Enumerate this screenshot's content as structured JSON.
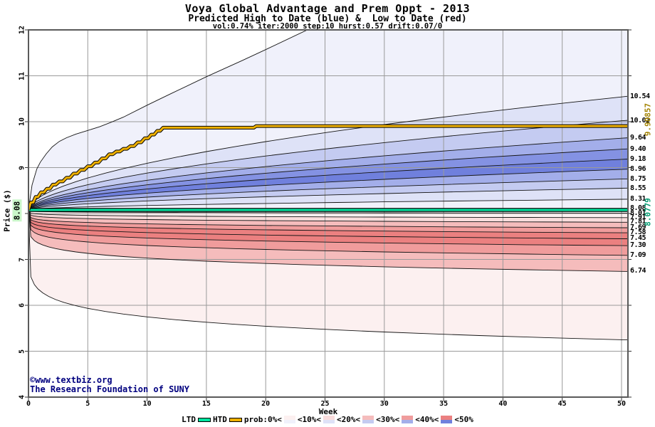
{
  "header": {
    "title": "Voya Global Advantage and Prem Oppt - 2013",
    "subtitle": "Predicted High to Date (blue) &  Low to Date (red)",
    "params": "vol:0.74% iter:2000 step:10 hurst:0.57 drift:0.07/0"
  },
  "watermark": {
    "line1": "©www.textbiz.org",
    "line2": "The Research Foundation of SUNY",
    "color": "#00007f"
  },
  "axes": {
    "x_label": "Week",
    "y_label": "Price ($)",
    "x_ticks": [
      0,
      5,
      10,
      15,
      20,
      25,
      30,
      35,
      40,
      45,
      50
    ],
    "y_ticks": [
      4,
      5,
      6,
      7,
      8,
      9,
      10,
      11,
      12
    ],
    "x_range": [
      0,
      50
    ],
    "y_range": [
      4,
      12
    ],
    "start_price_label": "8.08"
  },
  "right_axis": {
    "blue_labels": [
      {
        "text": "10.54",
        "v": 10.54
      },
      {
        "text": "10.02",
        "v": 10.02
      },
      {
        "text": "9.64",
        "v": 9.64
      },
      {
        "text": "9.40",
        "v": 9.4
      },
      {
        "text": "9.18",
        "v": 9.18
      },
      {
        "text": "8.96",
        "v": 8.96
      },
      {
        "text": "8.75",
        "v": 8.75
      },
      {
        "text": "8.55",
        "v": 8.55
      },
      {
        "text": "8.31",
        "v": 8.31
      },
      {
        "text": "8.08",
        "v": 8.115
      }
    ],
    "red_labels": [
      {
        "text": "8.01",
        "v": 8.005
      },
      {
        "text": "7.91",
        "v": 7.905
      },
      {
        "text": "7.81",
        "v": 7.81
      },
      {
        "text": "7.69",
        "v": 7.69
      },
      {
        "text": "7.58",
        "v": 7.58
      },
      {
        "text": "7.45",
        "v": 7.45
      },
      {
        "text": "7.30",
        "v": 7.3
      },
      {
        "text": "7.09",
        "v": 7.09
      },
      {
        "text": "6.74",
        "v": 6.74
      }
    ],
    "htd_value_label": {
      "text": "9.90857",
      "color": "#a28200"
    },
    "ltd_value_label": {
      "text": "8.0779",
      "color": "#009a70"
    }
  },
  "legend": {
    "ltd_label": "LTD",
    "htd_label": "HTD",
    "ltd_color": "#00e5a0",
    "htd_color": "#eeb000",
    "prob_labels": [
      "prob:0%<",
      "<10%<",
      "<20%<",
      "<30%<",
      "<40%<",
      "<50%"
    ],
    "prob_swatches": [
      {
        "top": "#fcf0f0",
        "bottom": "#f0f1fb"
      },
      {
        "top": "#f9dcdc",
        "bottom": "#dee2f7"
      },
      {
        "top": "#f5bcbc",
        "bottom": "#c4cbf1"
      },
      {
        "top": "#f09c9c",
        "bottom": "#a3aeea"
      },
      {
        "top": "#eb8080",
        "bottom": "#7080dd"
      }
    ]
  },
  "chart_data": {
    "type": "area",
    "subtype": "probability-fan",
    "title": "Voya Global Advantage and Prem Oppt - 2013",
    "xlabel": "Week",
    "ylabel": "Price ($)",
    "x_range": [
      0,
      50
    ],
    "y_range": [
      4,
      12
    ],
    "grid": true,
    "start_price": 8.08,
    "grid_color": "#9a9a9a",
    "border_color": "#5a5a5a",
    "boundary_color": "#141414",
    "htd_line": {
      "name": "High to Date",
      "value": 9.90857,
      "color": "#eeb000",
      "points": [
        [
          0,
          8.08
        ],
        [
          0.4,
          8.24
        ],
        [
          0.8,
          8.36
        ],
        [
          1.3,
          8.46
        ],
        [
          1.8,
          8.54
        ],
        [
          2.3,
          8.63
        ],
        [
          2.9,
          8.7
        ],
        [
          3.5,
          8.78
        ],
        [
          4.1,
          8.87
        ],
        [
          4.7,
          8.95
        ],
        [
          5.3,
          9.03
        ],
        [
          5.9,
          9.11
        ],
        [
          6.5,
          9.2
        ],
        [
          7.1,
          9.29
        ],
        [
          7.7,
          9.35
        ],
        [
          8.3,
          9.41
        ],
        [
          8.9,
          9.47
        ],
        [
          9.5,
          9.55
        ],
        [
          10.1,
          9.64
        ],
        [
          10.6,
          9.72
        ],
        [
          11.1,
          9.8
        ],
        [
          11.6,
          9.87
        ],
        [
          19.0,
          9.87
        ],
        [
          19.4,
          9.905
        ],
        [
          50.55,
          9.905
        ]
      ]
    },
    "ltd_line": {
      "name": "Low to Date",
      "value": 8.0779,
      "color": "#00e5a0"
    },
    "blue_fan": {
      "name": "Predicted High to Date distribution",
      "outer_points": [
        [
          0,
          8.08
        ],
        [
          0.3,
          8.62
        ],
        [
          0.7,
          8.97
        ],
        [
          1,
          9.12
        ],
        [
          1.5,
          9.3
        ],
        [
          2,
          9.45
        ],
        [
          2.6,
          9.57
        ],
        [
          3.2,
          9.65
        ],
        [
          4,
          9.73
        ],
        [
          5,
          9.81
        ],
        [
          6,
          9.89
        ],
        [
          7,
          9.99
        ],
        [
          8,
          10.1
        ],
        [
          10,
          10.36
        ],
        [
          12,
          10.61
        ],
        [
          15,
          10.98
        ],
        [
          18,
          11.33
        ],
        [
          20,
          11.57
        ],
        [
          24,
          12.06
        ],
        [
          27,
          12.4
        ],
        [
          50.55,
          15.2
        ]
      ],
      "boundary_week50_values": [
        10.54,
        10.02,
        9.64,
        9.4,
        9.18,
        8.96,
        8.75,
        8.55,
        8.31,
        8.1
      ],
      "exponent": 0.55,
      "band_colors": [
        "#f0f1fb",
        "#dee2f7",
        "#c4cbf1",
        "#a3aeea",
        "#8492e3",
        "#7080dd",
        "#a3aeea",
        "#c4cbf1",
        "#dee2f7",
        "#f0f1fb"
      ]
    },
    "red_fan": {
      "name": "Predicted Low to Date distribution",
      "boundary_week50_values": [
        8.01,
        7.91,
        7.81,
        7.69,
        7.58,
        7.45,
        7.3,
        7.09,
        6.74
      ],
      "outer_week50_value": 5.25,
      "exponent": 0.15,
      "outer_exponent": 0.12,
      "band_colors": [
        "#fcf0f0",
        "#f9dcdc",
        "#f5bcbc",
        "#f09c9c",
        "#eb8080",
        "#eb8080",
        "#f09c9c",
        "#f5bcbc",
        "#fcf0f0"
      ]
    }
  }
}
